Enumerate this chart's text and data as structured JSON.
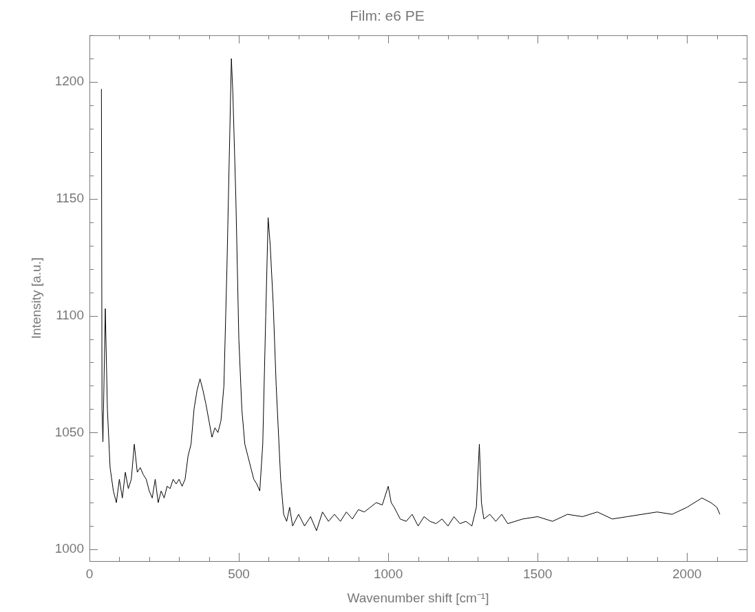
{
  "chart_data": {
    "type": "line",
    "title": "Film: e6 PE",
    "xlabel": "Wavenumber shift [cm⁻¹]",
    "ylabel": "Intensity [a.u.]",
    "x": [
      40,
      42,
      45,
      53,
      60,
      69,
      80,
      90,
      100,
      110,
      120,
      130,
      140,
      150,
      160,
      170,
      180,
      190,
      200,
      210,
      220,
      230,
      240,
      250,
      260,
      270,
      280,
      290,
      300,
      310,
      320,
      330,
      340,
      350,
      360,
      370,
      380,
      390,
      400,
      410,
      420,
      430,
      440,
      450,
      460,
      470,
      475,
      480,
      490,
      500,
      510,
      520,
      530,
      540,
      550,
      560,
      570,
      580,
      590,
      598,
      605,
      615,
      625,
      640,
      650,
      660,
      670,
      680,
      700,
      720,
      740,
      760,
      780,
      800,
      820,
      840,
      860,
      880,
      900,
      920,
      940,
      960,
      980,
      1000,
      1010,
      1020,
      1040,
      1060,
      1080,
      1100,
      1120,
      1140,
      1160,
      1180,
      1200,
      1220,
      1240,
      1260,
      1280,
      1295,
      1305,
      1312,
      1320,
      1340,
      1360,
      1380,
      1400,
      1450,
      1500,
      1550,
      1600,
      1650,
      1700,
      1750,
      1800,
      1850,
      1900,
      1950,
      2000,
      2050,
      2080,
      2100,
      2110
    ],
    "series": [
      {
        "color": "#000000",
        "values": [
          1197,
          1060,
          1046,
          1103,
          1060,
          1035,
          1025,
          1020,
          1030,
          1022,
          1033,
          1026,
          1030,
          1045,
          1033,
          1035,
          1032,
          1030,
          1025,
          1022,
          1030,
          1020,
          1025,
          1022,
          1027,
          1026,
          1030,
          1028,
          1030,
          1027,
          1030,
          1040,
          1045,
          1060,
          1068,
          1073,
          1068,
          1062,
          1055,
          1048,
          1052,
          1050,
          1055,
          1070,
          1120,
          1180,
          1210,
          1195,
          1150,
          1090,
          1060,
          1045,
          1040,
          1035,
          1030,
          1028,
          1025,
          1045,
          1100,
          1142,
          1130,
          1105,
          1070,
          1030,
          1015,
          1012,
          1018,
          1010,
          1015,
          1010,
          1014,
          1008,
          1016,
          1012,
          1015,
          1012,
          1016,
          1013,
          1017,
          1016,
          1018,
          1020,
          1019,
          1027,
          1020,
          1018,
          1013,
          1012,
          1015,
          1010,
          1014,
          1012,
          1011,
          1013,
          1010,
          1014,
          1011,
          1012,
          1010,
          1018,
          1045,
          1020,
          1013,
          1015,
          1012,
          1015,
          1011,
          1013,
          1014,
          1012,
          1015,
          1014,
          1016,
          1013,
          1014,
          1015,
          1016,
          1015,
          1018,
          1022,
          1020,
          1018,
          1015
        ]
      }
    ],
    "xlim": [
      0,
      2200
    ],
    "ylim": [
      995,
      1220
    ],
    "xticks": [
      0,
      {
        "value": 100,
        "label": null
      },
      {
        "value": 200,
        "label": null
      },
      {
        "value": 300,
        "label": null
      },
      {
        "value": 400,
        "label": null
      },
      500,
      {
        "value": 600,
        "label": null
      },
      {
        "value": 700,
        "label": null
      },
      {
        "value": 800,
        "label": null
      },
      {
        "value": 900,
        "label": null
      },
      1000,
      {
        "value": 1100,
        "label": null
      },
      {
        "value": 1200,
        "label": null
      },
      {
        "value": 1300,
        "label": null
      },
      {
        "value": 1400,
        "label": null
      },
      1500,
      {
        "value": 1600,
        "label": null
      },
      {
        "value": 1700,
        "label": null
      },
      {
        "value": 1800,
        "label": null
      },
      {
        "value": 1900,
        "label": null
      },
      2000,
      {
        "value": 2100,
        "label": null
      },
      {
        "value": 2200,
        "label": null
      }
    ],
    "yticks": [
      1000,
      {
        "value": 1010,
        "label": null
      },
      {
        "value": 1020,
        "label": null
      },
      {
        "value": 1030,
        "label": null
      },
      {
        "value": 1040,
        "label": null
      },
      1050,
      {
        "value": 1060,
        "label": null
      },
      {
        "value": 1070,
        "label": null
      },
      {
        "value": 1080,
        "label": null
      },
      {
        "value": 1090,
        "label": null
      },
      1100,
      {
        "value": 1110,
        "label": null
      },
      {
        "value": 1120,
        "label": null
      },
      {
        "value": 1130,
        "label": null
      },
      {
        "value": 1140,
        "label": null
      },
      1150,
      {
        "value": 1160,
        "label": null
      },
      {
        "value": 1170,
        "label": null
      },
      {
        "value": 1180,
        "label": null
      },
      {
        "value": 1190,
        "label": null
      },
      1200,
      {
        "value": 1210,
        "label": null
      },
      {
        "value": 1220,
        "label": null
      }
    ],
    "grid": false,
    "legend": false,
    "marker": "none",
    "line_style": "solid"
  }
}
